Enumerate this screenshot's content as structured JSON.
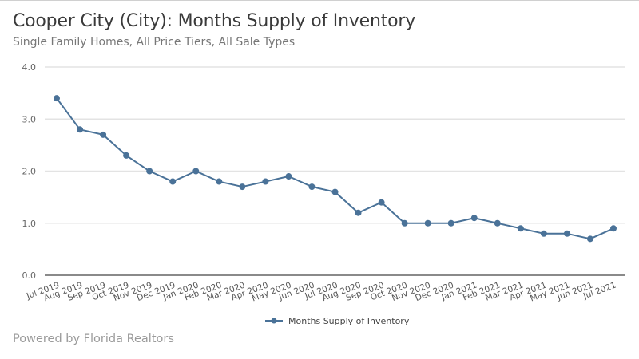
{
  "header": {
    "title": "Cooper City (City): Months Supply of Inventory",
    "subtitle": "Single Family Homes, All Price Tiers, All Sale Types"
  },
  "footer": {
    "text": "Powered by Florida Realtors"
  },
  "colors": {
    "series": "#4a7298",
    "grid": "#e3e3e3",
    "axis": "#8a8a8a"
  },
  "chart_data": {
    "type": "line",
    "title": "Cooper City (City): Months Supply of Inventory",
    "subtitle": "Single Family Homes, All Price Tiers, All Sale Types",
    "xlabel": "",
    "ylabel": "",
    "ylim": [
      0,
      4
    ],
    "yticks": [
      "0.0",
      "1.0",
      "2.0",
      "3.0",
      "4.0"
    ],
    "grid": true,
    "legend_position": "bottom-center",
    "categories": [
      "Jul 2019",
      "Aug 2019",
      "Sep 2019",
      "Oct 2019",
      "Nov 2019",
      "Dec 2019",
      "Jan 2020",
      "Feb 2020",
      "Mar 2020",
      "Apr 2020",
      "May 2020",
      "Jun 2020",
      "Jul 2020",
      "Aug 2020",
      "Sep 2020",
      "Oct 2020",
      "Nov 2020",
      "Dec 2020",
      "Jan 2021",
      "Feb 2021",
      "Mar 2021",
      "Apr 2021",
      "May 2021",
      "Jun 2021",
      "Jul 2021"
    ],
    "series": [
      {
        "name": "Months Supply of Inventory",
        "values": [
          3.4,
          2.8,
          2.7,
          2.3,
          2.0,
          1.8,
          2.0,
          1.8,
          1.7,
          1.8,
          1.9,
          1.7,
          1.6,
          1.2,
          1.4,
          1.0,
          1.0,
          1.0,
          1.1,
          1.0,
          0.9,
          0.8,
          0.8,
          0.7,
          0.9
        ]
      }
    ]
  }
}
